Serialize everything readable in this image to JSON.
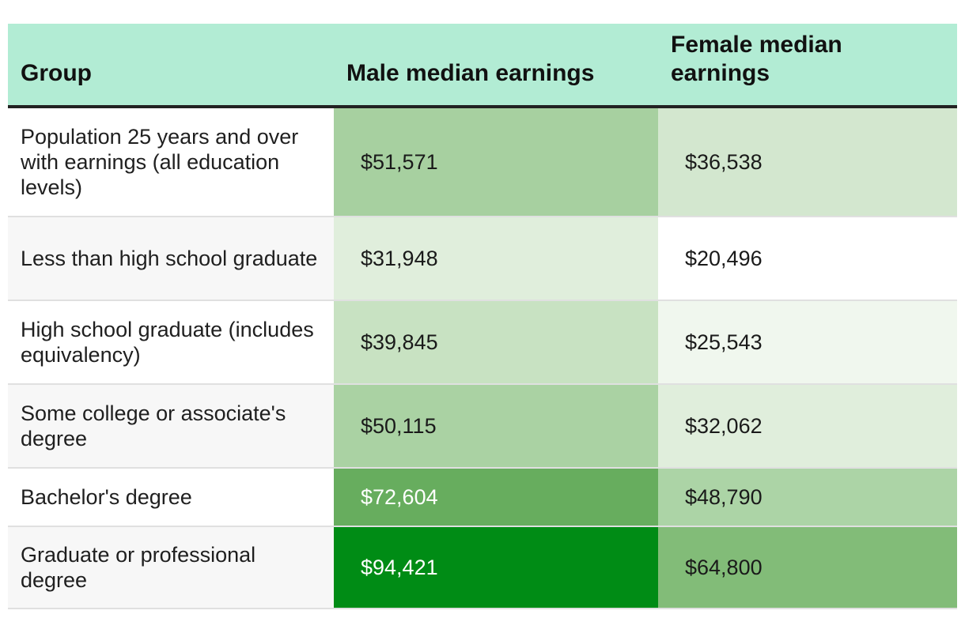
{
  "chart_data": {
    "type": "table",
    "columns": [
      "Group",
      "Male median earnings",
      "Female median earnings"
    ],
    "rows": [
      {
        "group": "Population 25 years and over with earnings (all education levels)",
        "male": "$51,571",
        "female": "$36,538",
        "male_value": 51571,
        "female_value": 36538,
        "male_color": "#a7d0a0",
        "female_color": "#d3e7cf",
        "male_text_color": "#1a1a1a",
        "female_text_color": "#1a1a1a"
      },
      {
        "group": "Less than high school graduate",
        "male": "$31,948",
        "female": "$20,496",
        "male_value": 31948,
        "female_value": 20496,
        "male_color": "#e0eedc",
        "female_color": "#ffffff",
        "male_text_color": "#1a1a1a",
        "female_text_color": "#1a1a1a"
      },
      {
        "group": "High school graduate (includes equivalency)",
        "male": "$39,845",
        "female": "$25,543",
        "male_value": 39845,
        "female_value": 25543,
        "male_color": "#c8e2c2",
        "female_color": "#f0f7ee",
        "male_text_color": "#1a1a1a",
        "female_text_color": "#1a1a1a"
      },
      {
        "group": "Some college or associate's degree",
        "male": "$50,115",
        "female": "$32,062",
        "male_value": 50115,
        "female_value": 32062,
        "male_color": "#aad2a3",
        "female_color": "#e0eedc",
        "male_text_color": "#1a1a1a",
        "female_text_color": "#1a1a1a"
      },
      {
        "group": "Bachelor's degree",
        "male": "$72,604",
        "female": "$48,790",
        "male_value": 72604,
        "female_value": 48790,
        "male_color": "#67ad5e",
        "female_color": "#acd4a6",
        "male_text_color": "#ffffff",
        "female_text_color": "#1a1a1a"
      },
      {
        "group": "Graduate or professional degree",
        "male": "$94,421",
        "female": "$64,800",
        "male_value": 94421,
        "female_value": 64800,
        "male_color": "#008c15",
        "female_color": "#82bc78",
        "male_text_color": "#ffffff",
        "female_text_color": "#1a1a1a"
      }
    ]
  },
  "colors": {
    "header_bg": "#b2ecd4",
    "row_label_bg_odd": "#ffffff",
    "row_label_bg_even": "#f7f7f7",
    "header_rule": "#222222"
  }
}
